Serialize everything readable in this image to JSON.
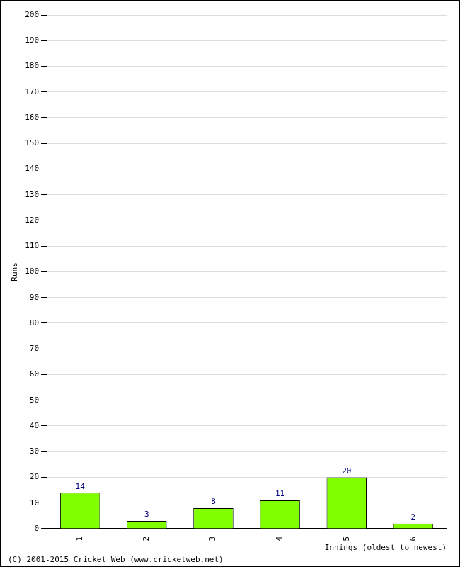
{
  "chart_data": {
    "type": "bar",
    "categories": [
      "1",
      "2",
      "3",
      "4",
      "5",
      "6"
    ],
    "values": [
      14,
      3,
      8,
      11,
      20,
      2
    ],
    "color": "#80ff00",
    "x_label": "Innings (oldest to newest)",
    "y_label": "Runs",
    "annotations": [
      "(C) 2001-2015 Cricket Web (www.cricketweb.net)"
    ],
    "ylim": [
      0,
      200
    ],
    "yticks": [
      0,
      10,
      20,
      30,
      40,
      50,
      60,
      70,
      80,
      90,
      100,
      110,
      120,
      130,
      140,
      150,
      160,
      170,
      180,
      190,
      200
    ],
    "grid": true,
    "data_labels": true
  }
}
